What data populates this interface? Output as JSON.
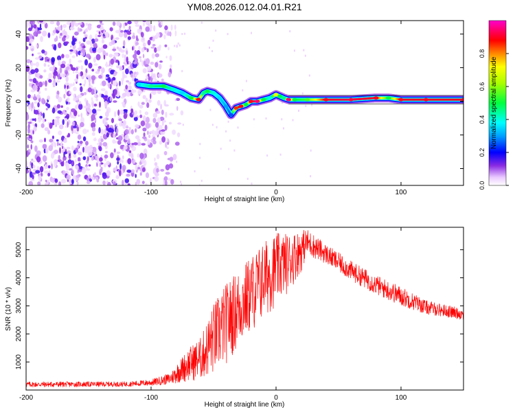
{
  "title": "YM08.2026.012.04.01.R21",
  "chart_data": [
    {
      "type": "heatmap",
      "name": "spectrogram",
      "xlabel": "Height of straight line (km)",
      "ylabel": "Frequency (Hz)",
      "xlim": [
        -200,
        150
      ],
      "ylim": [
        -50,
        48
      ],
      "xticks": [
        -200,
        -100,
        0,
        100
      ],
      "xtick_labels": [
        "-200",
        "-100",
        "0",
        "100"
      ],
      "yticks": [
        -40,
        -20,
        0,
        20,
        40
      ],
      "ytick_labels": [
        "-40",
        "-20",
        "0",
        "20",
        "40"
      ],
      "colorbar": {
        "label": "Normalized spectral amplitude",
        "range": [
          0.0,
          1.0
        ],
        "ticks": [
          0.0,
          0.2,
          0.4,
          0.6,
          0.8
        ],
        "tick_labels": [
          "0.0",
          "0.2",
          "0.4",
          "0.6",
          "0.8"
        ]
      },
      "noise_region_x": [
        -200,
        -90
      ],
      "ridge": {
        "x": [
          -110,
          -100,
          -90,
          -82,
          -75,
          -68,
          -62,
          -58,
          -55,
          -50,
          -45,
          -40,
          -36,
          -32,
          -28,
          -24,
          -20,
          -15,
          -10,
          -5,
          0,
          3,
          6,
          10,
          15,
          25,
          40,
          60,
          80,
          90,
          100,
          120,
          150
        ],
        "y": [
          10,
          9,
          9,
          7,
          5,
          2,
          1,
          5,
          6,
          5,
          2,
          -3,
          -8,
          -4,
          -3,
          -2,
          0,
          0,
          1,
          2,
          4,
          3,
          2,
          1,
          1,
          1,
          1,
          1,
          2,
          2,
          1,
          1,
          1
        ],
        "amplitude": [
          0.35,
          0.45,
          0.5,
          0.4,
          0.35,
          0.5,
          0.9,
          0.45,
          0.5,
          0.4,
          0.35,
          0.3,
          0.25,
          0.85,
          0.9,
          0.5,
          0.9,
          0.95,
          0.5,
          0.4,
          0.7,
          0.5,
          0.45,
          0.95,
          0.5,
          0.55,
          0.9,
          0.92,
          0.9,
          0.5,
          0.9,
          0.9,
          0.9
        ]
      }
    },
    {
      "type": "line",
      "name": "snr",
      "xlabel": "Height of straight line (km)",
      "ylabel": "SNR (10 * v/v)",
      "xlim": [
        -200,
        150
      ],
      "ylim": [
        0,
        5800
      ],
      "xticks": [
        -200,
        -100,
        0,
        100
      ],
      "xtick_labels": [
        "-200",
        "-100",
        "0",
        "100"
      ],
      "yticks": [
        1000,
        2000,
        3000,
        4000,
        5000
      ],
      "ytick_labels": [
        "1000",
        "2000",
        "3000",
        "4000",
        "5000"
      ],
      "color": "#ff0000",
      "envelope": {
        "x": [
          -200,
          -120,
          -100,
          -85,
          -70,
          -60,
          -50,
          -40,
          -30,
          -20,
          -10,
          0,
          10,
          20,
          25,
          40,
          60,
          80,
          100,
          120,
          150
        ],
        "lower": [
          100,
          120,
          150,
          200,
          300,
          350,
          500,
          900,
          1500,
          2000,
          2500,
          3000,
          3500,
          4200,
          4800,
          4500,
          3900,
          3400,
          3000,
          2700,
          2500
        ],
        "upper": [
          300,
          300,
          380,
          600,
          1500,
          1900,
          3100,
          3800,
          4300,
          4800,
          5300,
          5600,
          5600,
          5700,
          5750,
          5200,
          4600,
          4100,
          3700,
          3200,
          2900
        ]
      }
    }
  ]
}
